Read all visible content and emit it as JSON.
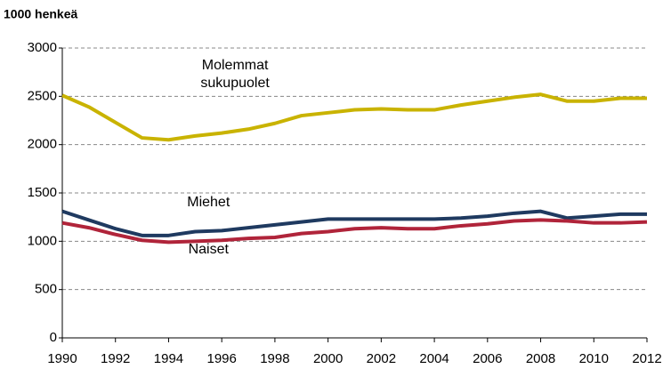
{
  "chart_data": {
    "type": "line",
    "y_label": "1000 henkeä",
    "x": [
      1990,
      1991,
      1992,
      1993,
      1994,
      1995,
      1996,
      1997,
      1998,
      1999,
      2000,
      2001,
      2002,
      2003,
      2004,
      2005,
      2006,
      2007,
      2008,
      2009,
      2010,
      2011,
      2012
    ],
    "series": [
      {
        "name": "Molemmat sukupuolet",
        "color": "#c9b300",
        "values": [
          2510,
          2390,
          2230,
          2070,
          2050,
          2090,
          2120,
          2160,
          2220,
          2300,
          2330,
          2360,
          2370,
          2360,
          2360,
          2410,
          2450,
          2490,
          2520,
          2450,
          2450,
          2480,
          2480
        ]
      },
      {
        "name": "Miehet",
        "color": "#1f3a60",
        "values": [
          1310,
          1220,
          1130,
          1060,
          1060,
          1100,
          1110,
          1140,
          1170,
          1200,
          1230,
          1230,
          1230,
          1230,
          1230,
          1240,
          1260,
          1290,
          1310,
          1240,
          1260,
          1280,
          1280
        ]
      },
      {
        "name": "Naiset",
        "color": "#b0243a",
        "values": [
          1190,
          1140,
          1070,
          1010,
          990,
          1000,
          1010,
          1030,
          1040,
          1080,
          1100,
          1130,
          1140,
          1130,
          1130,
          1160,
          1180,
          1210,
          1220,
          1210,
          1190,
          1190,
          1200
        ]
      }
    ],
    "xlim": [
      1990,
      2012
    ],
    "xticks": [
      1990,
      1992,
      1994,
      1996,
      1998,
      2000,
      2002,
      2004,
      2006,
      2008,
      2010,
      2012
    ],
    "ylim": [
      0,
      3000
    ],
    "yticks": [
      0,
      500,
      1000,
      1500,
      2000,
      2500,
      3000
    ],
    "grid": true
  }
}
